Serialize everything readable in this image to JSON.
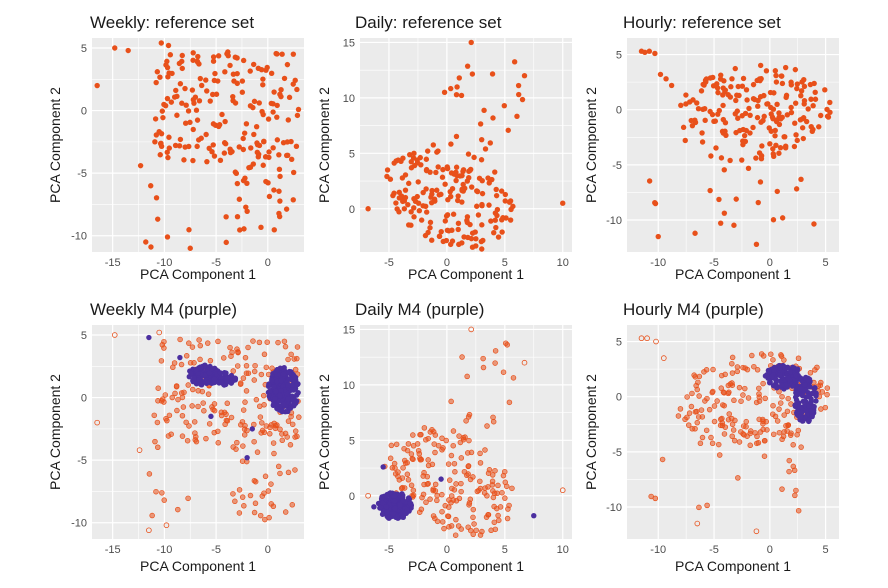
{
  "colors": {
    "reference": "#e8501a",
    "m4": "#4b2fa0",
    "panel_bg": "#ebebeb",
    "grid": "#ffffff",
    "tick_text": "#4d4d4d",
    "title_text": "#1a1a1a"
  },
  "chart_data": [
    {
      "type": "scatter",
      "id": "weekly-ref",
      "title": "Weekly: reference set",
      "xlabel": "PCA Component 1",
      "ylabel": "PCA Component 2",
      "xlim": [
        -17,
        3.5
      ],
      "ylim": [
        -11.3,
        5.8
      ],
      "xticks": [
        -15,
        -10,
        -5,
        0
      ],
      "yticks": [
        -10,
        -5,
        0,
        5
      ],
      "xtick_labels": [
        "-15",
        "-10",
        "-5",
        "0"
      ],
      "ytick_labels": [
        "-10",
        "-5",
        "0",
        "5"
      ],
      "series": [
        {
          "name": "reference set",
          "marker": "filled",
          "color": "#e8501a",
          "regions": [
            {
              "kind": "rect",
              "x": [
                -11,
                3
              ],
              "y": [
                -4,
                4.7
              ],
              "weight": 1,
              "fill": 0.85
            },
            {
              "kind": "rect",
              "x": [
                -3.5,
                2.8
              ],
              "y": [
                -9.8,
                -2
              ],
              "weight": 0.35,
              "fill": 0.6
            },
            {
              "kind": "rect",
              "x": [
                -11.5,
                -3
              ],
              "y": [
                -11,
                -2.5
              ],
              "weight": 0.2,
              "fill": 0.25
            }
          ],
          "points": [
            [
              -14.8,
              5
            ],
            [
              -13.5,
              4.8
            ],
            [
              -16.5,
              2
            ],
            [
              -10.3,
              5.4
            ],
            [
              -9.6,
              5.2
            ],
            [
              -12.3,
              -4.4
            ],
            [
              -11.8,
              -10.5
            ],
            [
              -11.3,
              -10.9
            ],
            [
              -9.7,
              -10.1
            ],
            [
              -7.5,
              -11
            ]
          ]
        }
      ]
    },
    {
      "type": "scatter",
      "id": "daily-ref",
      "title": "Daily: reference set",
      "xlabel": "PCA Component 1",
      "ylabel": "PCA Component 2",
      "xlim": [
        -7.5,
        10.8
      ],
      "ylim": [
        -3.9,
        15.4
      ],
      "xticks": [
        -5,
        0,
        5,
        10
      ],
      "yticks": [
        0,
        5,
        10,
        15
      ],
      "xtick_labels": [
        "-5",
        "0",
        "5",
        "10"
      ],
      "ytick_labels": [
        "0",
        "5",
        "10",
        "15"
      ],
      "series": [
        {
          "name": "reference set",
          "marker": "filled",
          "color": "#e8501a",
          "regions": [
            {
              "kind": "ellipse",
              "cx": 0.2,
              "cy": 1.2,
              "rx": 6.1,
              "ry": 4.3,
              "rot": -35,
              "weight": 1,
              "fill": 0.92
            },
            {
              "kind": "ellipse",
              "cx": 3.2,
              "cy": 9.5,
              "rx": 3.4,
              "ry": 4.8,
              "rot": -20,
              "weight": 0.3,
              "fill": 0.35
            }
          ],
          "points": [
            [
              -6.8,
              0
            ],
            [
              10,
              0.5
            ],
            [
              2.1,
              15
            ],
            [
              -0.2,
              10.5
            ],
            [
              6.7,
              12
            ],
            [
              6.2,
              10.3
            ]
          ]
        }
      ]
    },
    {
      "type": "scatter",
      "id": "hourly-ref",
      "title": "Hourly: reference set",
      "xlabel": "PCA Component 1",
      "ylabel": "PCA Component 2",
      "xlim": [
        -12.8,
        6.2
      ],
      "ylim": [
        -12.9,
        6.5
      ],
      "xticks": [
        -10,
        -5,
        0,
        5
      ],
      "yticks": [
        -10,
        -5,
        0,
        5
      ],
      "xtick_labels": [
        "-10",
        "-5",
        "0",
        "5"
      ],
      "ytick_labels": [
        "-10",
        "-5",
        "0",
        "5"
      ],
      "series": [
        {
          "name": "reference set",
          "marker": "filled",
          "color": "#e8501a",
          "regions": [
            {
              "kind": "ellipse",
              "cx": -1.5,
              "cy": -0.3,
              "rx": 7,
              "ry": 4.3,
              "rot": 8,
              "weight": 1,
              "fill": 0.95
            },
            {
              "kind": "rect",
              "x": [
                -11,
                4.5
              ],
              "y": [
                -10.5,
                -3
              ],
              "weight": 0.3,
              "fill": 0.35
            }
          ],
          "points": [
            [
              -11.5,
              5.3
            ],
            [
              -11.2,
              5.2
            ],
            [
              -10.8,
              5.3
            ],
            [
              -10.3,
              5.1
            ],
            [
              -9.8,
              3.2
            ],
            [
              -9.3,
              2.8
            ],
            [
              -8.8,
              2.2
            ],
            [
              -1.2,
              -12.2
            ],
            [
              -6.7,
              -11.2
            ],
            [
              -10,
              -11.5
            ]
          ]
        }
      ]
    },
    {
      "type": "scatter",
      "id": "weekly-m4",
      "title": "Weekly M4 (purple)",
      "xlabel": "PCA Component 1",
      "ylabel": "PCA Component 2",
      "xlim": [
        -17,
        3.5
      ],
      "ylim": [
        -11.3,
        5.8
      ],
      "xticks": [
        -15,
        -10,
        -5,
        0
      ],
      "yticks": [
        -10,
        -5,
        0,
        5
      ],
      "xtick_labels": [
        "-15",
        "-10",
        "-5",
        "0"
      ],
      "ytick_labels": [
        "-10",
        "-5",
        "0",
        "5"
      ],
      "series": [
        {
          "name": "reference set",
          "marker": "open",
          "color": "#e8501a",
          "regions": [
            {
              "kind": "rect",
              "x": [
                -11,
                3
              ],
              "y": [
                -4,
                4.7
              ],
              "weight": 1,
              "fill": 0.85
            },
            {
              "kind": "rect",
              "x": [
                -3.5,
                2.8
              ],
              "y": [
                -9.8,
                -2
              ],
              "weight": 0.35,
              "fill": 0.6
            },
            {
              "kind": "rect",
              "x": [
                -11.5,
                -3
              ],
              "y": [
                -11,
                -2.5
              ],
              "weight": 0.2,
              "fill": 0.25
            }
          ],
          "points": [
            [
              -14.8,
              5
            ],
            [
              -16.5,
              -2
            ],
            [
              -10.5,
              5.2
            ],
            [
              -12.4,
              -4.2
            ],
            [
              -11.5,
              -10.6
            ],
            [
              -9.8,
              -10.2
            ]
          ]
        },
        {
          "name": "M4",
          "marker": "filled",
          "color": "#4b2fa0",
          "regions": [
            {
              "kind": "ellipse",
              "cx": 1.5,
              "cy": 0.6,
              "rx": 1.5,
              "ry": 1.8,
              "rot": 0,
              "weight": 1,
              "fill": 1
            },
            {
              "kind": "ellipse",
              "cx": -6.2,
              "cy": 1.8,
              "rx": 1.5,
              "ry": 0.8,
              "rot": 0,
              "weight": 0.5,
              "fill": 1
            },
            {
              "kind": "ellipse",
              "cx": -4.3,
              "cy": 1.5,
              "rx": 1.2,
              "ry": 0.5,
              "rot": 0,
              "weight": 0.25,
              "fill": 1
            }
          ],
          "points": [
            [
              -11.5,
              4.8
            ],
            [
              -8.5,
              3.2
            ],
            [
              -5.5,
              -1.5
            ],
            [
              -1.5,
              -2.5
            ],
            [
              -2,
              -4.8
            ]
          ]
        }
      ]
    },
    {
      "type": "scatter",
      "id": "daily-m4",
      "title": "Daily M4 (purple)",
      "xlabel": "PCA Component 1",
      "ylabel": "PCA Component 2",
      "xlim": [
        -7.5,
        10.8
      ],
      "ylim": [
        -3.9,
        15.4
      ],
      "xticks": [
        -5,
        0,
        5,
        10
      ],
      "yticks": [
        0,
        5,
        10,
        15
      ],
      "xtick_labels": [
        "-5",
        "0",
        "5",
        "10"
      ],
      "ytick_labels": [
        "0",
        "5",
        "10",
        "15"
      ],
      "series": [
        {
          "name": "reference set",
          "marker": "open",
          "color": "#e8501a",
          "regions": [
            {
              "kind": "ellipse",
              "cx": 0.2,
              "cy": 1.2,
              "rx": 6.1,
              "ry": 4.3,
              "rot": -35,
              "weight": 1,
              "fill": 0.92
            },
            {
              "kind": "ellipse",
              "cx": 3.2,
              "cy": 9.5,
              "rx": 3.4,
              "ry": 4.8,
              "rot": -20,
              "weight": 0.3,
              "fill": 0.35
            }
          ],
          "points": [
            [
              -6.8,
              0
            ],
            [
              10,
              0.5
            ],
            [
              2.1,
              15
            ],
            [
              6.7,
              12
            ]
          ]
        },
        {
          "name": "M4",
          "marker": "filled",
          "color": "#4b2fa0",
          "regions": [
            {
              "kind": "ellipse",
              "cx": -4.5,
              "cy": -0.9,
              "rx": 1.5,
              "ry": 1.2,
              "rot": 0,
              "weight": 1,
              "fill": 1
            }
          ],
          "points": [
            [
              -5.5,
              2.6
            ],
            [
              7.5,
              -1.8
            ],
            [
              -6.3,
              -1
            ],
            [
              -0.5,
              1.5
            ]
          ]
        }
      ]
    },
    {
      "type": "scatter",
      "id": "hourly-m4",
      "title": "Hourly M4 (purple)",
      "xlabel": "PCA Component 1",
      "ylabel": "PCA Component 2",
      "xlim": [
        -12.8,
        6.2
      ],
      "ylim": [
        -12.9,
        6.5
      ],
      "xticks": [
        -10,
        -5,
        0,
        5
      ],
      "yticks": [
        -10,
        -5,
        0,
        5
      ],
      "xtick_labels": [
        "-10",
        "-5",
        "0",
        "5"
      ],
      "ytick_labels": [
        "-10",
        "-5",
        "0",
        "5"
      ],
      "series": [
        {
          "name": "reference set",
          "marker": "open",
          "color": "#e8501a",
          "regions": [
            {
              "kind": "ellipse",
              "cx": -1.5,
              "cy": -0.3,
              "rx": 7,
              "ry": 4.3,
              "rot": 8,
              "weight": 1,
              "fill": 0.95
            },
            {
              "kind": "rect",
              "x": [
                -11,
                4.5
              ],
              "y": [
                -10.5,
                -3
              ],
              "weight": 0.3,
              "fill": 0.35
            }
          ],
          "points": [
            [
              -11.5,
              5.3
            ],
            [
              -11,
              5.3
            ],
            [
              -10.2,
              5
            ],
            [
              -9.5,
              3.5
            ],
            [
              -1.2,
              -12.2
            ],
            [
              -6.5,
              -11.5
            ]
          ]
        },
        {
          "name": "M4",
          "marker": "filled",
          "color": "#4b2fa0",
          "regions": [
            {
              "kind": "ellipse",
              "cx": 1.2,
              "cy": 1.8,
              "rx": 1.6,
              "ry": 1.1,
              "rot": 0,
              "weight": 0.6,
              "fill": 1
            },
            {
              "kind": "ellipse",
              "cx": 3.2,
              "cy": -0.3,
              "rx": 1,
              "ry": 2.1,
              "rot": 0,
              "weight": 0.55,
              "fill": 1
            }
          ],
          "points": [
            [
              0.5,
              1
            ],
            [
              2.5,
              2.5
            ],
            [
              3.8,
              -1.8
            ]
          ]
        }
      ]
    }
  ]
}
